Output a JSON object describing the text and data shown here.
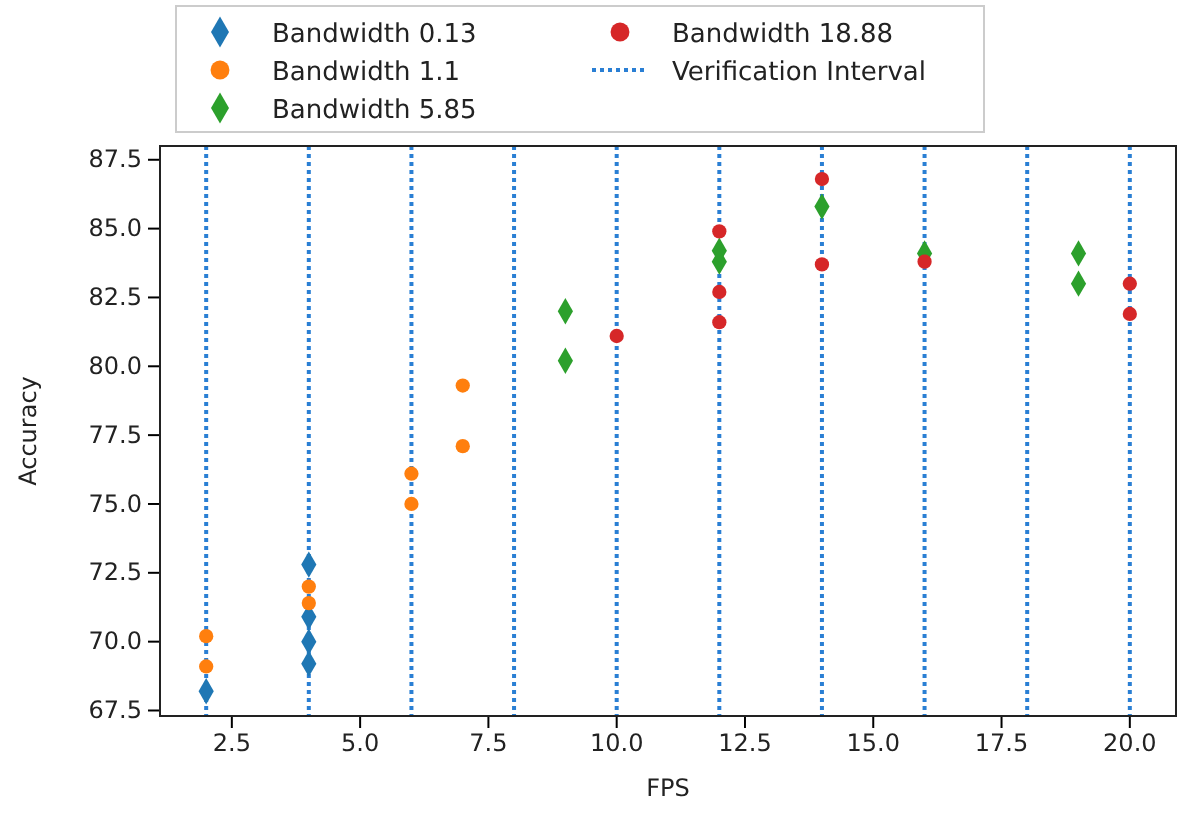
{
  "chart_data": {
    "type": "scatter",
    "xlabel": "FPS",
    "ylabel": "Accuracy",
    "xlim": [
      1.1,
      20.9
    ],
    "ylim": [
      67.3,
      88.0
    ],
    "xticks": [
      {
        "value": 2.5,
        "label": "2.5"
      },
      {
        "value": 5,
        "label": "5.0"
      },
      {
        "value": 7.5,
        "label": "7.5"
      },
      {
        "value": 10,
        "label": "10.0"
      },
      {
        "value": 12.5,
        "label": "12.5"
      },
      {
        "value": 15,
        "label": "15.0"
      },
      {
        "value": 17.5,
        "label": "17.5"
      },
      {
        "value": 20,
        "label": "20.0"
      }
    ],
    "yticks": [
      {
        "value": 67.5,
        "label": "67.5"
      },
      {
        "value": 70,
        "label": "70.0"
      },
      {
        "value": 72.5,
        "label": "72.5"
      },
      {
        "value": 75,
        "label": "75.0"
      },
      {
        "value": 77.5,
        "label": "77.5"
      },
      {
        "value": 80,
        "label": "80.0"
      },
      {
        "value": 82.5,
        "label": "82.5"
      },
      {
        "value": 85,
        "label": "85.0"
      },
      {
        "value": 87.5,
        "label": "87.5"
      }
    ],
    "legend": "top",
    "grid": false,
    "series": [
      {
        "name": "Bandwidth 0.13",
        "color": "#1f77b4",
        "marker": "diamond",
        "x": [
          2,
          4,
          4,
          4,
          4
        ],
        "values": [
          68.2,
          72.8,
          70.9,
          70.0,
          69.2
        ]
      },
      {
        "name": "Bandwidth 1.1",
        "color": "#ff7f0e",
        "marker": "circle",
        "x": [
          2,
          2,
          4,
          4,
          6,
          6,
          7,
          7
        ],
        "values": [
          70.2,
          69.1,
          72.0,
          71.4,
          76.1,
          75.0,
          79.3,
          77.1
        ]
      },
      {
        "name": "Bandwidth 5.85",
        "color": "#2ca02c",
        "marker": "diamond",
        "x": [
          9,
          9,
          12,
          12,
          14,
          16,
          19,
          19
        ],
        "values": [
          82.0,
          80.2,
          83.8,
          84.2,
          85.8,
          84.1,
          84.1,
          83.0
        ]
      },
      {
        "name": "Bandwidth 18.88",
        "color": "#d62728",
        "marker": "circle",
        "x": [
          10,
          12,
          12,
          12,
          14,
          14,
          16,
          20,
          20
        ],
        "values": [
          81.1,
          84.9,
          82.7,
          81.6,
          86.8,
          83.7,
          83.8,
          83.0,
          81.9
        ]
      }
    ],
    "ref_lines": [
      {
        "axis": "x",
        "value": 2,
        "label": "Verification Interval",
        "color": "#2a7fd4",
        "line_style": "dotted"
      },
      {
        "axis": "x",
        "value": 4,
        "color": "#2a7fd4",
        "line_style": "dotted"
      },
      {
        "axis": "x",
        "value": 6,
        "color": "#2a7fd4",
        "line_style": "dotted"
      },
      {
        "axis": "x",
        "value": 8,
        "color": "#2a7fd4",
        "line_style": "dotted"
      },
      {
        "axis": "x",
        "value": 10,
        "color": "#2a7fd4",
        "line_style": "dotted"
      },
      {
        "axis": "x",
        "value": 12,
        "color": "#2a7fd4",
        "line_style": "dotted"
      },
      {
        "axis": "x",
        "value": 14,
        "color": "#2a7fd4",
        "line_style": "dotted"
      },
      {
        "axis": "x",
        "value": 16,
        "color": "#2a7fd4",
        "line_style": "dotted"
      },
      {
        "axis": "x",
        "value": 18,
        "color": "#2a7fd4",
        "line_style": "dotted"
      },
      {
        "axis": "x",
        "value": 20,
        "color": "#2a7fd4",
        "line_style": "dotted"
      }
    ]
  }
}
